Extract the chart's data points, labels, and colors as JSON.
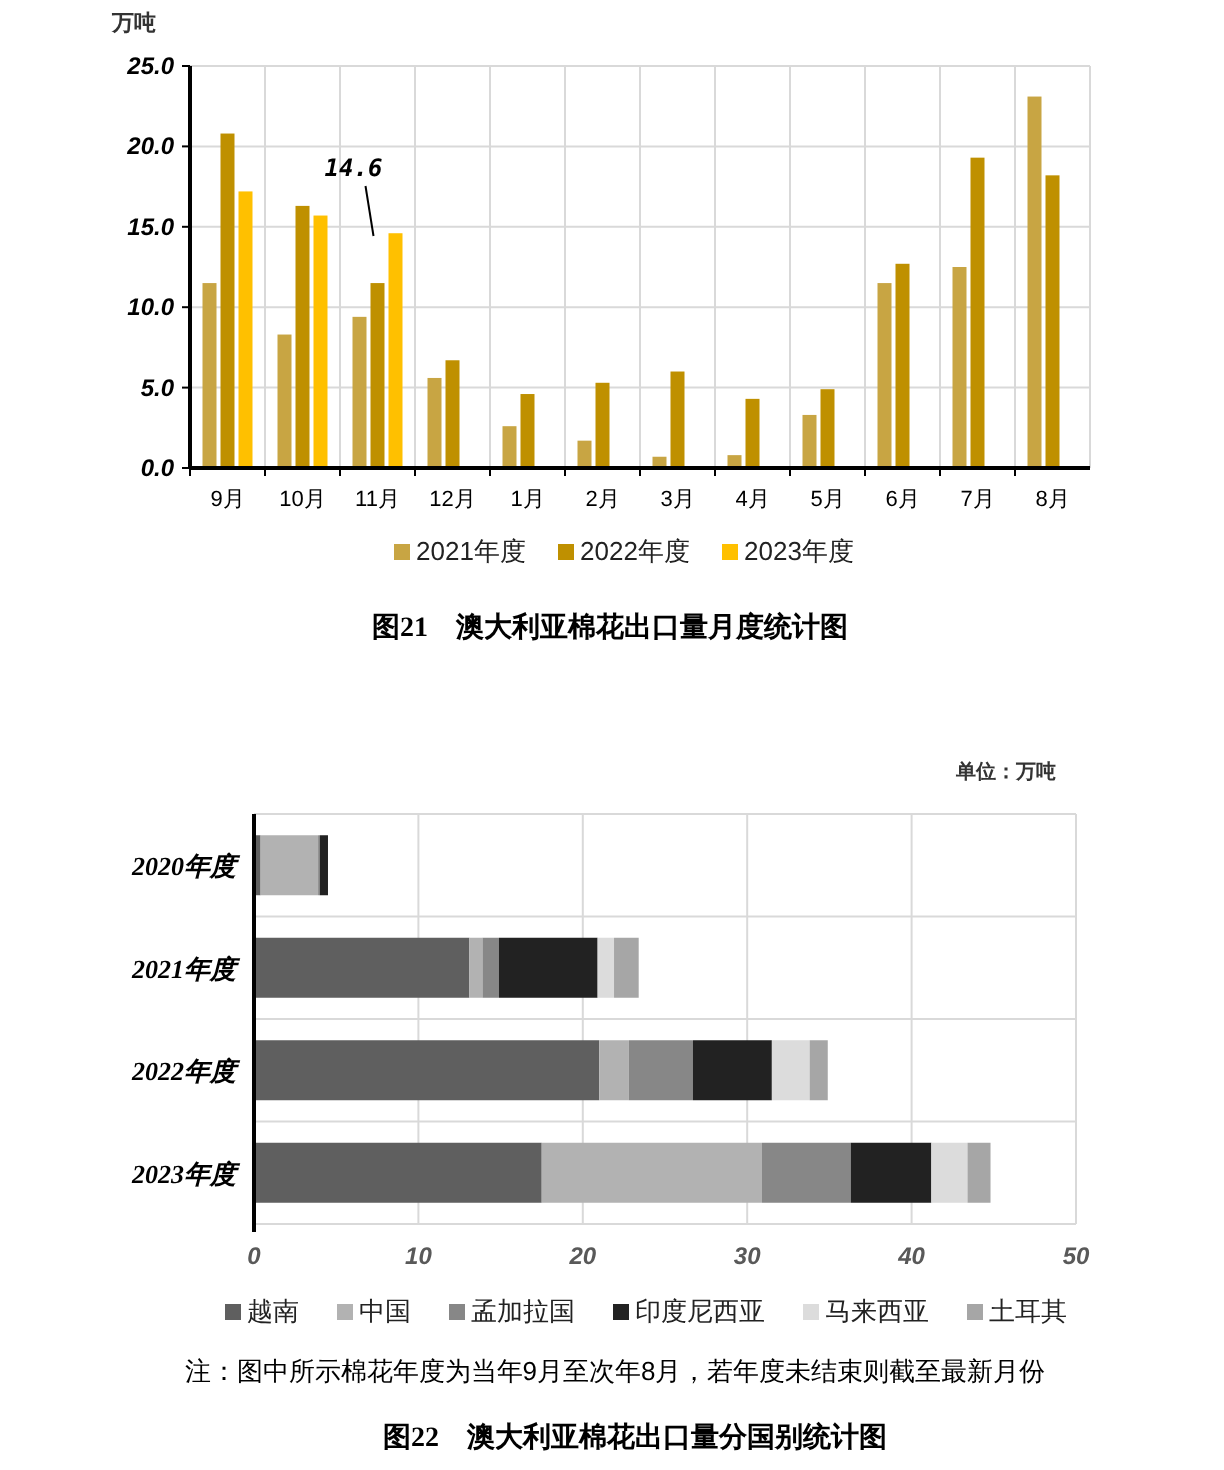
{
  "chart_data": [
    {
      "type": "bar",
      "title": "图21　澳大利亚棉花出口量月度统计图",
      "ylabel": "万吨",
      "categories": [
        "9月",
        "10月",
        "11月",
        "12月",
        "1月",
        "2月",
        "3月",
        "4月",
        "5月",
        "6月",
        "7月",
        "8月"
      ],
      "series": [
        {
          "name": "2021年度",
          "color": "#c8a543",
          "values": [
            11.5,
            8.3,
            9.4,
            5.6,
            2.6,
            1.7,
            0.7,
            0.8,
            3.3,
            11.5,
            12.5,
            23.1
          ]
        },
        {
          "name": "2022年度",
          "color": "#bf9000",
          "values": [
            20.8,
            16.3,
            11.5,
            6.7,
            4.6,
            5.3,
            6.0,
            4.3,
            4.9,
            12.7,
            19.3,
            18.2
          ]
        },
        {
          "name": "2023年度",
          "color": "#ffc000",
          "values": [
            17.2,
            15.7,
            14.6,
            null,
            null,
            null,
            null,
            null,
            null,
            null,
            null,
            null
          ]
        }
      ],
      "ylim": [
        0,
        25
      ],
      "yticks": [
        {
          "value": 0,
          "label": "0.0"
        },
        {
          "value": 5,
          "label": "5.0"
        },
        {
          "value": 10,
          "label": "10.0"
        },
        {
          "value": 15,
          "label": "15.0"
        },
        {
          "value": 20,
          "label": "20.0"
        },
        {
          "value": 25,
          "label": "25.0"
        }
      ],
      "annotations": [
        "14.6"
      ],
      "grid": true,
      "legend": "bottom"
    },
    {
      "type": "bar",
      "orientation": "horizontal",
      "stacked": true,
      "title": "图22　澳大利亚棉花出口量分国别统计图",
      "categories": [
        "2020年度",
        "2021年度",
        "2022年度",
        "2023年度"
      ],
      "series": [
        {
          "name": "越南",
          "color": "#5f5f5f",
          "values": [
            0.4,
            13.1,
            21.0,
            17.5
          ]
        },
        {
          "name": "中国",
          "color": "#b2b2b2",
          "values": [
            3.5,
            0.8,
            1.8,
            13.4
          ]
        },
        {
          "name": "孟加拉国",
          "color": "#878787",
          "values": [
            0.1,
            1.0,
            3.9,
            5.4
          ]
        },
        {
          "name": "印度尼西亚",
          "color": "#222222",
          "values": [
            0.5,
            6.0,
            4.8,
            4.9
          ]
        },
        {
          "name": "马来西亚",
          "color": "#dcdcdc",
          "values": [
            0,
            1.0,
            2.3,
            2.2
          ]
        },
        {
          "name": "土耳其",
          "color": "#a6a6a6",
          "values": [
            0,
            1.5,
            1.1,
            1.4
          ]
        }
      ],
      "xlim": [
        0,
        50
      ],
      "xticks": [
        0,
        10,
        20,
        30,
        40,
        50
      ],
      "annotations": [
        "单位：万吨",
        "注：图中所示棉花年度为当年9月至次年8月，若年度未结束则截至最新月份"
      ],
      "grid": true,
      "legend": "bottom"
    }
  ]
}
